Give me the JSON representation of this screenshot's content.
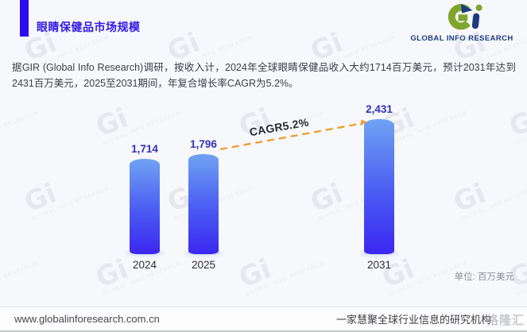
{
  "header": {
    "title": "眼睛保健品市场规模",
    "logo": {
      "mark": "Gi",
      "name": "GLOBAL INFO RESEARCH"
    }
  },
  "intro": "据GIR (Global Info Research)调研，按收入计，2024年全球眼睛保健品收入大约1714百万美元，预计2031年达到2431百万美元，2025至2031期间，年复合增长率CAGR为5.2%。",
  "chart_data": {
    "type": "bar",
    "title": "眼睛保健品市场规模",
    "categories": [
      "2024",
      "2025",
      "2031"
    ],
    "values": [
      1714,
      1796,
      2431
    ],
    "value_labels": [
      "1,714",
      "1,796",
      "2,431"
    ],
    "annotation": "CAGR5.2%",
    "unit_label": "单位: 百万美元",
    "ylabel": "",
    "xlabel": "",
    "ylim": [
      0,
      2500
    ],
    "grid": false,
    "legend": "none",
    "bar_color_top": "#6FA3F2",
    "bar_color_bottom": "#3B27F0",
    "trend_line_color": "#EFA032",
    "value_label_color": "#3331B8"
  },
  "watermark": {
    "mark": "Gi",
    "name": "GLOBAL INFO RESEARCH"
  },
  "footer": {
    "url": "www.globalinforesearch.com.cn",
    "slogan": "一家慧聚全球行业信息的研究机构",
    "corner_watermark": "格隆汇"
  }
}
